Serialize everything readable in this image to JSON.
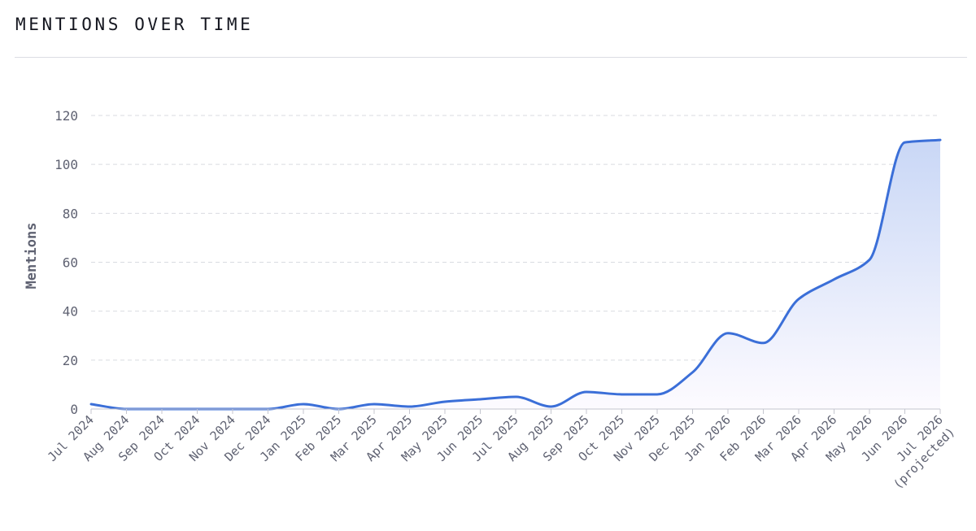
{
  "page": {
    "title": "MENTIONS OVER TIME"
  },
  "chart_data": {
    "type": "area",
    "title": "",
    "xlabel": "",
    "ylabel": "Mentions",
    "ylim": [
      0,
      120
    ],
    "yticks": [
      0,
      20,
      40,
      60,
      80,
      100,
      120
    ],
    "grid": true,
    "legend": "none",
    "categories": [
      "Jul 2024",
      "Aug 2024",
      "Sep 2024",
      "Oct 2024",
      "Nov 2024",
      "Dec 2024",
      "Jan 2025",
      "Feb 2025",
      "Mar 2025",
      "Apr 2025",
      "May 2025",
      "Jun 2025",
      "Jul 2025",
      "Aug 2025",
      "Sep 2025",
      "Oct 2025",
      "Nov 2025",
      "Dec 2025",
      "Jan 2026",
      "Feb 2026",
      "Mar 2026",
      "Apr 2026",
      "May 2026",
      "Jun 2026",
      "Jul 2026|(projected)"
    ],
    "series": [
      {
        "values": [
          2,
          0,
          0,
          0,
          0,
          0,
          2,
          0,
          2,
          1,
          3,
          4,
          5,
          1,
          7,
          6,
          6,
          15,
          31,
          27,
          45,
          53,
          61,
          109,
          110
        ]
      }
    ],
    "colors": {
      "line": "#3b6fd8",
      "fill_top": "#c9d7f6",
      "fill_bottom": "#fdfbff",
      "grid": "#d9dbe1",
      "axis": "#c4c6cf",
      "text": "#5f6272"
    }
  }
}
